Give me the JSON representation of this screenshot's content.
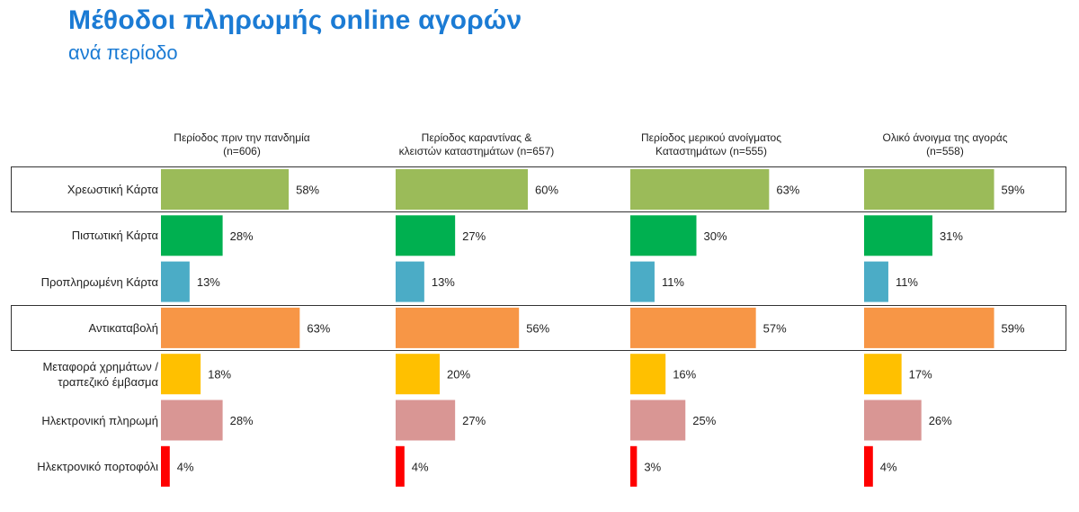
{
  "header": {
    "title": "Μέθοδοι πληρωμής online αγορών",
    "subtitle": "ανά περίοδο"
  },
  "chart_data": {
    "type": "bar",
    "orientation": "horizontal",
    "panels": [
      {
        "label_lines": [
          "Περίοδος πριν την πανδημία",
          "(n=606)"
        ]
      },
      {
        "label_lines": [
          "Περίοδος καραντίνας &",
          "κλειστών καταστημάτων (n=657)"
        ]
      },
      {
        "label_lines": [
          "Περίοδος μερικού ανοίγματος",
          "Καταστημάτων (n=555)"
        ]
      },
      {
        "label_lines": [
          "Ολικό άνοιγμα της αγοράς",
          "(n=558)"
        ]
      }
    ],
    "categories": [
      {
        "lines": [
          "Χρεωστική Κάρτα"
        ],
        "color": "#9bbb59",
        "highlight": true
      },
      {
        "lines": [
          "Πιστωτική Κάρτα"
        ],
        "color": "#00b050",
        "highlight": false
      },
      {
        "lines": [
          "Προπληρωμένη Κάρτα"
        ],
        "color": "#4bacc6",
        "highlight": false
      },
      {
        "lines": [
          "Αντικαταβολή"
        ],
        "color": "#f79646",
        "highlight": true
      },
      {
        "lines": [
          "Μεταφορά χρημάτων /",
          "τραπεζικό έμβασμα"
        ],
        "color": "#ffc000",
        "highlight": false
      },
      {
        "lines": [
          "Ηλεκτρονική πληρωμή"
        ],
        "color": "#d99694",
        "highlight": false
      },
      {
        "lines": [
          "Ηλεκτρονικό πορτοφόλι"
        ],
        "color": "#ff0000",
        "highlight": false
      }
    ],
    "values": [
      [
        58,
        28,
        13,
        63,
        18,
        28,
        4
      ],
      [
        60,
        27,
        13,
        56,
        20,
        27,
        4
      ],
      [
        63,
        30,
        11,
        57,
        16,
        25,
        3
      ],
      [
        59,
        31,
        11,
        59,
        17,
        26,
        4
      ]
    ],
    "value_suffix": "%",
    "xlim": [
      0,
      100
    ]
  }
}
